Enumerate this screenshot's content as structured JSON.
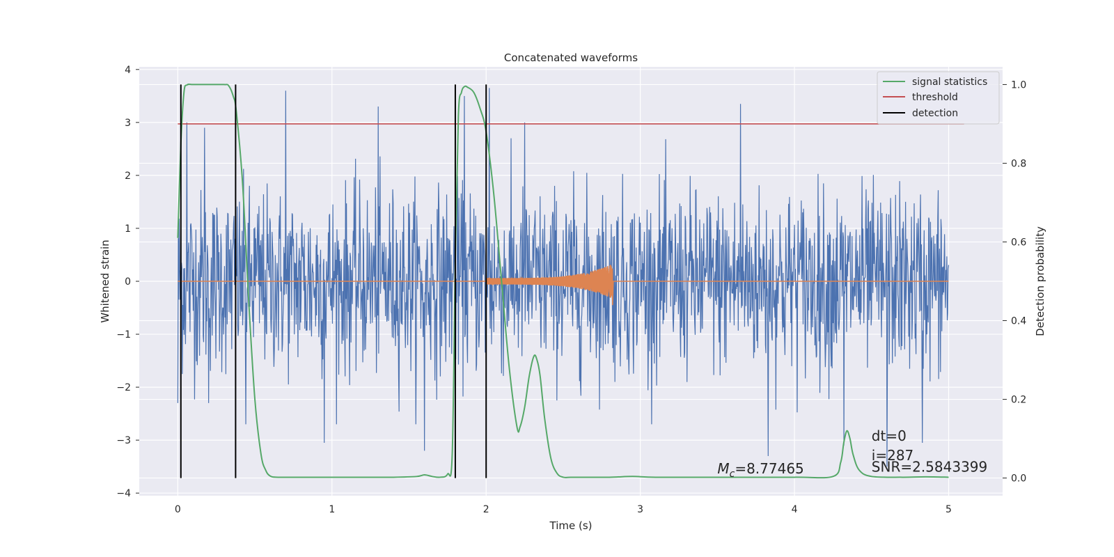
{
  "chart_data": {
    "type": "line",
    "title": "Concatenated waveforms",
    "xlabel": "Time (s)",
    "ylabel": "Whitened strain",
    "y2label": "Detection probability",
    "xlim": [
      -0.25,
      5.35
    ],
    "ylim": [
      -4.05,
      4.05
    ],
    "y2lim": [
      -0.045,
      1.045
    ],
    "xticks": [
      0,
      1,
      2,
      3,
      4,
      5
    ],
    "xtick_labels": [
      "0",
      "1",
      "2",
      "3",
      "4",
      "5"
    ],
    "yticks": [
      4,
      3,
      2,
      1,
      0,
      -1,
      -2,
      -3,
      -4
    ],
    "ytick_labels": [
      "4",
      "3",
      "2",
      "1",
      "0",
      "−1",
      "−2",
      "−3",
      "−4"
    ],
    "y2ticks": [
      1.0,
      0.8,
      0.6,
      0.4,
      0.2,
      0.0
    ],
    "y2tick_labels": [
      "1.0",
      "0.8",
      "0.6",
      "0.4",
      "0.2",
      "0.0"
    ],
    "grid": true,
    "legend_position": "top-right",
    "colors": {
      "strain": "#4c72b0",
      "template": "#dd8452",
      "signal_statistics": "#55a868",
      "threshold": "#c44e52",
      "detection": "#000000",
      "plot_bg": "#eaeaf2",
      "grid": "#ffffff"
    },
    "series": [
      {
        "name": "signal statistics",
        "axis": "right",
        "x": [
          0.0,
          0.02,
          0.04,
          0.06,
          0.1,
          0.2,
          0.3,
          0.33,
          0.36,
          0.38,
          0.42,
          0.46,
          0.5,
          0.54,
          0.57,
          0.6,
          0.65,
          0.8,
          1.0,
          1.2,
          1.4,
          1.55,
          1.6,
          1.65,
          1.7,
          1.75,
          1.78,
          1.8,
          1.82,
          1.84,
          1.86,
          1.88,
          1.92,
          1.96,
          2.0,
          2.05,
          2.1,
          2.15,
          2.2,
          2.22,
          2.25,
          2.28,
          2.31,
          2.33,
          2.35,
          2.38,
          2.42,
          2.46,
          2.5,
          2.55,
          2.6,
          2.8,
          2.95,
          3.1,
          3.5,
          4.0,
          4.25,
          4.3,
          4.32,
          4.34,
          4.36,
          4.38,
          4.42,
          4.5,
          4.7,
          4.85,
          5.0
        ],
        "values": [
          0.61,
          0.85,
          0.98,
          0.999,
          1.0,
          1.0,
          1.0,
          0.997,
          0.97,
          0.93,
          0.75,
          0.45,
          0.2,
          0.06,
          0.02,
          0.005,
          0.002,
          0.002,
          0.002,
          0.002,
          0.002,
          0.004,
          0.008,
          0.004,
          0.002,
          0.01,
          0.06,
          0.55,
          0.92,
          0.98,
          0.995,
          0.993,
          0.98,
          0.94,
          0.88,
          0.72,
          0.5,
          0.28,
          0.13,
          0.13,
          0.18,
          0.26,
          0.31,
          0.3,
          0.26,
          0.15,
          0.05,
          0.012,
          0.002,
          0.002,
          0.002,
          0.002,
          0.004,
          0.002,
          0.002,
          0.002,
          0.004,
          0.04,
          0.09,
          0.12,
          0.1,
          0.06,
          0.02,
          0.004,
          0.002,
          0.003,
          0.002
        ]
      },
      {
        "name": "threshold",
        "axis": "right",
        "x": [
          0.0,
          5.1
        ],
        "values": [
          0.9,
          0.9
        ]
      },
      {
        "name": "detection",
        "axis": "right",
        "x": [
          0.02,
          0.375,
          1.8,
          2.0
        ],
        "values": [
          [
            0.0,
            1.0
          ],
          [
            0.0,
            1.0
          ],
          [
            0.0,
            1.0
          ],
          [
            0.0,
            1.0
          ]
        ]
      },
      {
        "name": "",
        "axis": "left",
        "description_of_shape": "",
        "x_range": [
          0.0,
          5.0
        ],
        "sample_count": 1700,
        "envelope_typical": 1.5,
        "peaks": [
          {
            "x": 0.0,
            "y": 1.7
          },
          {
            "x": 0.0,
            "y": -2.3
          },
          {
            "x": 0.06,
            "y": 3.0
          },
          {
            "x": 0.175,
            "y": 2.9
          },
          {
            "x": 0.2,
            "y": -2.3
          },
          {
            "x": 0.7,
            "y": 3.6
          },
          {
            "x": 0.44,
            "y": -2.7
          },
          {
            "x": 0.95,
            "y": -3.05
          },
          {
            "x": 1.3,
            "y": 3.3
          },
          {
            "x": 1.6,
            "y": -3.2
          },
          {
            "x": 1.86,
            "y": 3.5
          },
          {
            "x": 2.02,
            "y": 3.65
          },
          {
            "x": 2.25,
            "y": 3.0
          },
          {
            "x": 3.83,
            "y": -3.3
          },
          {
            "x": 3.65,
            "y": 3.35
          },
          {
            "x": 4.32,
            "y": -3.1
          },
          {
            "x": 4.6,
            "y": -3.5
          },
          {
            "x": 4.83,
            "y": -3.05
          }
        ]
      },
      {
        "name": "",
        "axis": "left",
        "chirp_start": 2.0,
        "chirp_end": 2.82,
        "amplitude_start": 0.06,
        "amplitude_peak": 0.33,
        "amplitude_min_at_end": -0.45
      }
    ],
    "annotations": [
      {
        "id": "mc",
        "symbol": "M",
        "subscript": "c",
        "text": "=8.77465",
        "x": 3.5,
        "y2": 0.012
      },
      {
        "id": "dt",
        "text": "dt=0",
        "x": 4.5,
        "y2": 0.095
      },
      {
        "id": "i",
        "text": "i=287",
        "x": 4.5,
        "y2": 0.045
      },
      {
        "id": "snr",
        "text": "SNR=2.5843399",
        "x": 4.5,
        "y2": 0.016
      }
    ]
  }
}
